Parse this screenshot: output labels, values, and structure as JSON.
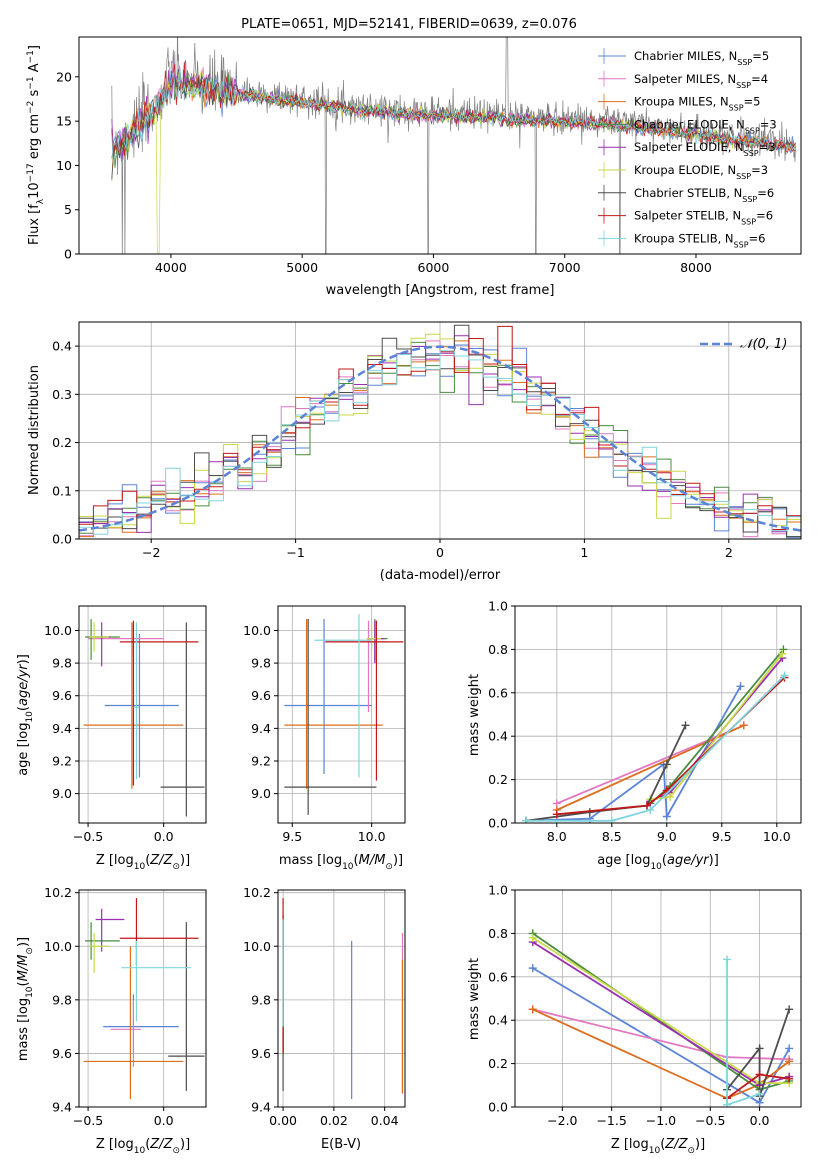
{
  "chart_data": [
    {
      "id": "spectrum",
      "type": "line",
      "title": "PLATE=0651, MJD=52141, FIBERID=0639, z=0.076",
      "xlabel": "wavelength [Angstrom, rest frame]",
      "ylabel": "Flux [f$_\\lambda$10$^{-17}$ erg cm$^{-2}$ s$^{-1}$ A$^{-1}$]",
      "ylabel_display": [
        "Flux [f",
        "λ",
        "10",
        "−17",
        " erg cm",
        "−2",
        " s",
        "−1",
        " A",
        "−1",
        "]"
      ],
      "xlim": [
        3300,
        8800
      ],
      "ylim": [
        0,
        24.5
      ],
      "xticks": [
        "4000",
        "5000",
        "6000",
        "7000",
        "8000"
      ],
      "yticks": [
        "0",
        "5",
        "10",
        "15",
        "20"
      ],
      "observed_flux_approx": {
        "x": [
          3550,
          3700,
          3900,
          4000,
          4300,
          4700,
          5000,
          5500,
          6000,
          6500,
          7000,
          7400,
          7900,
          8400,
          8750
        ],
        "y": [
          12,
          14,
          17,
          20,
          19,
          18,
          17.5,
          16.5,
          16,
          15.7,
          15.3,
          15,
          14,
          13,
          12.5
        ]
      },
      "legend": [
        {
          "label": "Chabrier MILES, N",
          "sub": "SSP",
          "val": "=5"
        },
        {
          "label": "Salpeter MILES, N",
          "sub": "SSP",
          "val": "=4"
        },
        {
          "label": "Kroupa MILES, N",
          "sub": "SSP",
          "val": "=5"
        },
        {
          "label": "Chabrier ELODIE, N",
          "sub": "SSP",
          "val": "=3"
        },
        {
          "label": "Salpeter ELODIE, N",
          "sub": "SSP",
          "val": "=3"
        },
        {
          "label": "Kroupa ELODIE, N",
          "sub": "SSP",
          "val": "=3"
        },
        {
          "label": "Chabrier STELIB, N",
          "sub": "SSP",
          "val": "=6"
        },
        {
          "label": "Salpeter STELIB, N",
          "sub": "SSP",
          "val": "=6"
        },
        {
          "label": "Kroupa STELIB, N",
          "sub": "SSP",
          "val": "=6"
        }
      ]
    },
    {
      "id": "residuals",
      "type": "line",
      "xlabel": "(data-model)/error",
      "ylabel": "Normed distribution",
      "xlim": [
        -2.5,
        2.5
      ],
      "ylim": [
        0,
        0.45
      ],
      "xticks": [
        "−2",
        "−1",
        "0",
        "1",
        "2"
      ],
      "yticks": [
        "0.0",
        "0.1",
        "0.2",
        "0.3",
        "0.4"
      ],
      "grid": true,
      "legend": "𝒩(0, 1)",
      "legend_placement": "top-right",
      "reference_curve": "normal pdf mean 0 sigma 1"
    },
    {
      "id": "age_vs_Z",
      "type": "scatter",
      "xlabel": "Z [log",
      "xlabel_sub": "10",
      "xlabel_rest": "(Z/Z",
      "xlabel_sun": "⊙",
      "xlabel_end": ")]",
      "ylabel": "age  [log",
      "ylabel_sub": "10",
      "ylabel_rest": "(age/yr)]",
      "xlim": [
        -0.56,
        0.28
      ],
      "ylim": [
        8.82,
        10.15
      ],
      "xticks": [
        "−0.5",
        "0.0"
      ],
      "yticks": [
        "9.0",
        "9.2",
        "9.4",
        "9.6",
        "9.8",
        "10.0"
      ],
      "grid": true
    },
    {
      "id": "age_vs_mass",
      "type": "scatter",
      "xlabel": "mass [log",
      "xlabel_sub": "10",
      "xlabel_rest": "(M/M",
      "xlabel_sun": "⊙",
      "xlabel_end": ")]",
      "xlim": [
        9.41,
        10.21
      ],
      "ylim": [
        8.82,
        10.15
      ],
      "xticks": [
        "9.5",
        "10.0"
      ],
      "yticks": [
        "9.0",
        "9.2",
        "9.4",
        "9.6",
        "9.8",
        "10.0"
      ],
      "grid": true
    },
    {
      "id": "weight_vs_age",
      "type": "line",
      "xlabel": "age  [log",
      "xlabel_sub": "10",
      "xlabel_rest": "(age/yr)]",
      "ylabel": "mass weight",
      "xlim": [
        7.62,
        10.22
      ],
      "ylim": [
        0,
        1.0
      ],
      "xticks": [
        "8.0",
        "8.5",
        "9.0",
        "9.5",
        "10.0"
      ],
      "yticks": [
        "0.0",
        "0.2",
        "0.4",
        "0.6",
        "0.8",
        "1.0"
      ],
      "grid": true,
      "series": [
        {
          "color": "#5b84d6",
          "x": [
            7.72,
            8.3,
            8.97,
            9.0,
            9.67
          ],
          "y": [
            0.01,
            0.02,
            0.27,
            0.03,
            0.63
          ]
        },
        {
          "color": "#e377c2",
          "x": [
            8.0,
            9.7
          ],
          "y": [
            0.09,
            0.45
          ]
        },
        {
          "color": "#dd6d1f",
          "x": [
            8.0,
            9.7
          ],
          "y": [
            0.06,
            0.45
          ]
        },
        {
          "color": "#4a8c3f",
          "x": [
            8.85,
            9.03,
            10.06
          ],
          "y": [
            0.09,
            0.17,
            0.8
          ]
        },
        {
          "color": "#9a2fb0",
          "x": [
            8.85,
            9.03,
            10.05
          ],
          "y": [
            0.1,
            0.14,
            0.76
          ]
        },
        {
          "color": "#c9d94a",
          "x": [
            8.85,
            9.03,
            10.05
          ],
          "y": [
            0.11,
            0.12,
            0.78
          ]
        },
        {
          "color": "#4d4d4d",
          "x": [
            7.72,
            8.3,
            8.82,
            9.0,
            9.17
          ],
          "y": [
            0.01,
            0.05,
            0.08,
            0.27,
            0.45
          ]
        },
        {
          "color": "#c01818",
          "x": [
            8.0,
            8.82,
            9.0,
            10.07
          ],
          "y": [
            0.04,
            0.08,
            0.15,
            0.67
          ]
        },
        {
          "color": "#80d4dc",
          "x": [
            7.72,
            8.5,
            8.85,
            10.07
          ],
          "y": [
            0.01,
            0.01,
            0.06,
            0.68
          ]
        }
      ]
    },
    {
      "id": "mass_vs_Z",
      "type": "scatter",
      "xlabel": "Z [log",
      "xlabel_sub": "10",
      "xlabel_rest": "(Z/Z",
      "xlabel_sun": "⊙",
      "xlabel_end": ")]",
      "ylabel": "mass [log",
      "ylabel_sub": "10",
      "ylabel_rest": "(M/M",
      "ylabel_sun": "⊙",
      "ylabel_end": ")]",
      "xlim": [
        -0.56,
        0.28
      ],
      "ylim": [
        9.4,
        10.21
      ],
      "xticks": [
        "−0.5",
        "0.0"
      ],
      "yticks": [
        "9.4",
        "9.6",
        "9.8",
        "10.0",
        "10.2"
      ]
    },
    {
      "id": "mass_vs_ebv",
      "type": "scatter",
      "xlabel": "E(B-V)",
      "xlim": [
        -0.002,
        0.048
      ],
      "ylim": [
        9.4,
        10.21
      ],
      "xticks": [
        "0.00",
        "0.02",
        "0.04"
      ],
      "yticks": [
        "9.4",
        "9.6",
        "9.8",
        "10.0",
        "10.2"
      ]
    },
    {
      "id": "weight_vs_Z",
      "type": "line",
      "xlabel": "Z [log",
      "xlabel_sub": "10",
      "xlabel_rest": "(Z/Z",
      "xlabel_sun": "⊙",
      "xlabel_end": ")]",
      "ylabel": "mass weight",
      "xlim": [
        -2.48,
        0.42
      ],
      "ylim": [
        0,
        1.0
      ],
      "xticks": [
        "−2.0",
        "−1.5",
        "−1.0",
        "−0.5",
        "0.0"
      ],
      "yticks": [
        "0.0",
        "0.2",
        "0.4",
        "0.6",
        "0.8",
        "1.0"
      ],
      "grid": true,
      "series": [
        {
          "color": "#5b84d6",
          "x": [
            -2.3,
            0.0,
            0.3
          ],
          "y": [
            0.64,
            0.02,
            0.27
          ]
        },
        {
          "color": "#e377c2",
          "x": [
            -2.3,
            -0.33,
            0.3
          ],
          "y": [
            0.45,
            0.23,
            0.22
          ]
        },
        {
          "color": "#dd6d1f",
          "x": [
            -2.3,
            -0.33,
            -0.02,
            0.3
          ],
          "y": [
            0.45,
            0.04,
            0.1,
            0.21
          ]
        },
        {
          "color": "#4a8c3f",
          "x": [
            -2.3,
            0.0,
            0.3
          ],
          "y": [
            0.8,
            0.08,
            0.12
          ]
        },
        {
          "color": "#9a2fb0",
          "x": [
            -2.3,
            0.0,
            0.3
          ],
          "y": [
            0.76,
            0.1,
            0.14
          ]
        },
        {
          "color": "#c9d94a",
          "x": [
            -2.3,
            0.0,
            0.3
          ],
          "y": [
            0.78,
            0.11,
            0.11
          ]
        },
        {
          "color": "#4d4d4d",
          "x": [
            -0.33,
            0.0,
            0.0,
            0.3
          ],
          "y": [
            0.08,
            0.27,
            0.05,
            0.45
          ]
        },
        {
          "color": "#c01818",
          "x": [
            -0.33,
            0.0,
            0.3
          ],
          "y": [
            0.04,
            0.15,
            0.13
          ]
        },
        {
          "color": "#80d4dc",
          "x": [
            -0.33,
            -0.33,
            0.0
          ],
          "y": [
            0.68,
            0.01,
            0.06
          ]
        }
      ]
    }
  ]
}
